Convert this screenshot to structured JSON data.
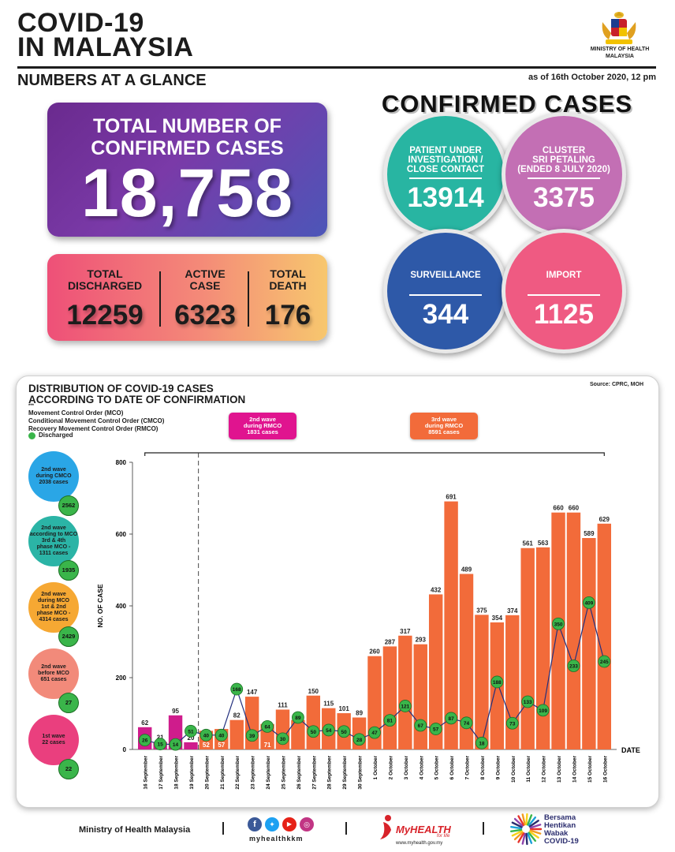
{
  "header": {
    "title_line1": "COVID-19",
    "title_line2": "IN MALAYSIA",
    "subtitle": "NUMBERS AT A GLANCE",
    "as_of": "as of 16th October 2020, 12 pm",
    "ministry_line1": "MINISTRY OF HEALTH",
    "ministry_line2": "MALAYSIA"
  },
  "total": {
    "label_line1": "TOTAL NUMBER OF",
    "label_line2": "CONFIRMED CASES",
    "value": "18,758"
  },
  "stats": [
    {
      "label_line1": "TOTAL",
      "label_line2": "DISCHARGED",
      "value": "12259"
    },
    {
      "label_line1": "ACTIVE",
      "label_line2": "CASE",
      "value": "6323"
    },
    {
      "label_line1": "TOTAL",
      "label_line2": "DEATH",
      "value": "176"
    }
  ],
  "confirmed": {
    "title": "CONFIRMED CASES",
    "bubbles": [
      {
        "lines": [
          "PATIENT UNDER",
          "INVESTIGATION /",
          "CLOSE CONTACT"
        ],
        "value": "13914",
        "color": "#28b5a2"
      },
      {
        "lines": [
          "CLUSTER",
          "SRI PETALING",
          "(ENDED 8 JULY 2020)"
        ],
        "value": "3375",
        "color": "#c36fb4"
      },
      {
        "lines": [
          "SURVEILLANCE"
        ],
        "value": "344",
        "color": "#2e59a8"
      },
      {
        "lines": [
          "IMPORT"
        ],
        "value": "1125",
        "color": "#ef5a82"
      }
    ]
  },
  "distribution": {
    "title_line1": "DISTRIBUTION OF COVID-19 CASES",
    "title_line2": "ACCORDING TO DATE OF CONFIRMATION",
    "source": "Source: CPRC, MOH",
    "legend_marker": "***",
    "legend": [
      "Movement Control Order (MCO)",
      "Conditional Movement Control Order (CMCO)",
      "Recovery Movement Control Order (RMCO)"
    ],
    "discharged_label": "Discharged",
    "wave_rmco": {
      "lines": [
        "2nd wave",
        "during RMCO",
        "1831 cases"
      ],
      "color": "#e0148f"
    },
    "wave_third": {
      "lines": [
        "3rd wave",
        "during RMCO",
        "8591 cases"
      ],
      "color": "#f26b3a"
    },
    "side_waves": [
      {
        "lines": [
          "2nd wave",
          "during CMCO",
          "2038 cases"
        ],
        "discharged": "2562",
        "color": "#2aa6e6"
      },
      {
        "lines": [
          "2nd wave",
          "according to MCO",
          "3rd & 4th",
          "phase MCO -",
          "1311 cases"
        ],
        "discharged": "1935",
        "color": "#2bb4a6"
      },
      {
        "lines": [
          "2nd wave",
          "during MCO",
          "1st & 2nd",
          "phase MCO -",
          "4314 cases"
        ],
        "discharged": "2429",
        "color": "#f6a833"
      },
      {
        "lines": [
          "2nd wave",
          "before MCO",
          "651 cases"
        ],
        "discharged": "27",
        "color": "#f28a7a"
      },
      {
        "lines": [
          "1st wave",
          "22 cases"
        ],
        "discharged": "22",
        "color": "#ea3f7e"
      }
    ]
  },
  "chart_data": {
    "type": "bar",
    "xlabel": "DATE",
    "ylabel": "NO. OF CASE",
    "ylim": [
      0,
      800
    ],
    "yticks": [
      0,
      200,
      400,
      600,
      800
    ],
    "categories": [
      "16 September",
      "17 September",
      "18 September",
      "19 September",
      "20 September",
      "21 September",
      "22 September",
      "23 September",
      "24 September",
      "25 September",
      "26 September",
      "27 September",
      "28 September",
      "29 September",
      "30 September",
      "1 October",
      "2 October",
      "3 October",
      "4 October",
      "5 October",
      "6 October",
      "7 October",
      "8 October",
      "9 October",
      "10 October",
      "11 October",
      "12 October",
      "13 October",
      "14 October",
      "15 October",
      "16 October"
    ],
    "series": [
      {
        "values": [
          62,
          21,
          95,
          20,
          52,
          57,
          82,
          147,
          71,
          111,
          82,
          150,
          115,
          101,
          89,
          260,
          287,
          317,
          293,
          432,
          691,
          489,
          375,
          354,
          374,
          561,
          563,
          660,
          660,
          589,
          629
        ],
        "value_labels": [
          "62",
          "21",
          "95",
          "20",
          "52",
          "57",
          "82",
          "147",
          "71",
          "111",
          "82",
          "150",
          "115",
          "101",
          "89",
          "260",
          "287",
          "317",
          "293",
          "432",
          "691",
          "489",
          "375",
          "354",
          "374",
          "561",
          "563",
          "660",
          "660",
          "589",
          "629"
        ],
        "colors": [
          "#cf1c8c",
          "#cf1c8c",
          "#cf1c8c",
          "#cf1c8c",
          "#f26b3a",
          "#f26b3a",
          "#f26b3a",
          "#f26b3a",
          "#f26b3a",
          "#f26b3a",
          "#f26b3a",
          "#f26b3a",
          "#f26b3a",
          "#f26b3a",
          "#f26b3a",
          "#f26b3a",
          "#f26b3a",
          "#f26b3a",
          "#f26b3a",
          "#f26b3a",
          "#f26b3a",
          "#f26b3a",
          "#f26b3a",
          "#f26b3a",
          "#f26b3a",
          "#f26b3a",
          "#f26b3a",
          "#f26b3a",
          "#f26b3a",
          "#f26b3a",
          "#f26b3a"
        ]
      },
      {
        "name": "Discharged",
        "values": [
          26,
          15,
          14,
          51,
          40,
          40,
          168,
          39,
          64,
          30,
          89,
          50,
          54,
          50,
          28,
          47,
          81,
          121,
          67,
          57,
          87,
          74,
          18,
          188,
          73,
          133,
          109,
          350,
          233,
          409,
          245
        ]
      }
    ],
    "value_label_inside": [
      4,
      5,
      8
    ],
    "grid": false,
    "legend": "left"
  },
  "footer": {
    "ministry": "Ministry of Health Malaysia",
    "social_handle": "myhealthkkm",
    "myhealth": "MyHEALTH",
    "myhealth_tag": "for life",
    "myhealth_url": "www.myhealth.gov.my",
    "campaign_lines": [
      "Bersama",
      "Hentikan",
      "Wabak",
      "COVID-19"
    ]
  },
  "colors": {
    "teal": "#28b5a2",
    "purple": "#6a2a8e",
    "orange": "#f26b3a",
    "magenta": "#cf1c8c",
    "green": "#3ab54a",
    "navy": "#23307e"
  }
}
